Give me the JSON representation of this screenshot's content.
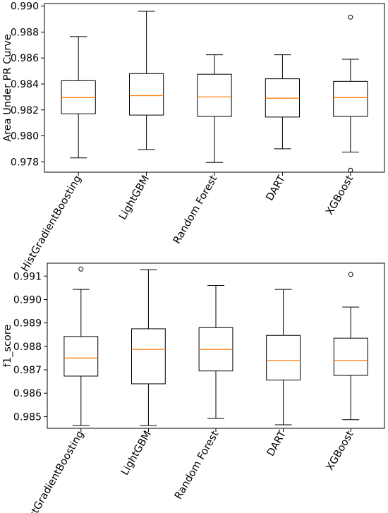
{
  "chart_data": [
    {
      "type": "box",
      "title": "",
      "xlabel": "",
      "ylabel": "Area Under PR Curve",
      "ylim": [
        0.9772,
        0.9902
      ],
      "yticks": [
        0.978,
        0.98,
        0.982,
        0.984,
        0.986,
        0.988,
        0.99
      ],
      "ytick_labels": [
        "0.978",
        "0.980",
        "0.982",
        "0.984",
        "0.986",
        "0.988",
        "0.990"
      ],
      "grid": false,
      "categories": [
        "HistGradientBoosting",
        "LightGBM",
        "Random Forest",
        "DART",
        "XGBoost"
      ],
      "boxes": [
        {
          "whisker_low": 0.9783,
          "q1": 0.9817,
          "median": 0.98295,
          "q3": 0.98425,
          "whisker_high": 0.98765,
          "outliers": []
        },
        {
          "whisker_low": 0.97895,
          "q1": 0.9816,
          "median": 0.9831,
          "q3": 0.9848,
          "whisker_high": 0.9896,
          "outliers": []
        },
        {
          "whisker_low": 0.97795,
          "q1": 0.9815,
          "median": 0.983,
          "q3": 0.98475,
          "whisker_high": 0.98625,
          "outliers": []
        },
        {
          "whisker_low": 0.979,
          "q1": 0.98145,
          "median": 0.9829,
          "q3": 0.9844,
          "whisker_high": 0.98625,
          "outliers": []
        },
        {
          "whisker_low": 0.97875,
          "q1": 0.9815,
          "median": 0.98295,
          "q3": 0.9842,
          "whisker_high": 0.9859,
          "outliers": [
            0.98915,
            0.97735
          ]
        }
      ],
      "colors": {
        "box": "#000000",
        "median": "#ff7f0e"
      }
    },
    {
      "type": "box",
      "title": "",
      "xlabel": "",
      "ylabel": "f1_score",
      "ylim": [
        0.9845,
        0.99155
      ],
      "yticks": [
        0.985,
        0.986,
        0.987,
        0.988,
        0.989,
        0.99,
        0.991
      ],
      "ytick_labels": [
        "0.985",
        "0.986",
        "0.987",
        "0.988",
        "0.989",
        "0.990",
        "0.991"
      ],
      "grid": false,
      "categories": [
        "HistGradientBoosting",
        "LightGBM",
        "Random Forest",
        "DART",
        "XGBoost"
      ],
      "boxes": [
        {
          "whisker_low": 0.98462,
          "q1": 0.98673,
          "median": 0.9875,
          "q3": 0.98842,
          "whisker_high": 0.99043,
          "outliers": [
            0.9913
          ]
        },
        {
          "whisker_low": 0.98462,
          "q1": 0.9864,
          "median": 0.98787,
          "q3": 0.98875,
          "whisker_high": 0.99127,
          "outliers": []
        },
        {
          "whisker_low": 0.98492,
          "q1": 0.98695,
          "median": 0.98787,
          "q3": 0.9888,
          "whisker_high": 0.9906,
          "outliers": []
        },
        {
          "whisker_low": 0.98465,
          "q1": 0.98656,
          "median": 0.9874,
          "q3": 0.98847,
          "whisker_high": 0.99043,
          "outliers": []
        },
        {
          "whisker_low": 0.98487,
          "q1": 0.98676,
          "median": 0.9874,
          "q3": 0.98835,
          "whisker_high": 0.98968,
          "outliers": [
            0.99107
          ]
        }
      ],
      "colors": {
        "box": "#000000",
        "median": "#ff7f0e"
      }
    }
  ]
}
